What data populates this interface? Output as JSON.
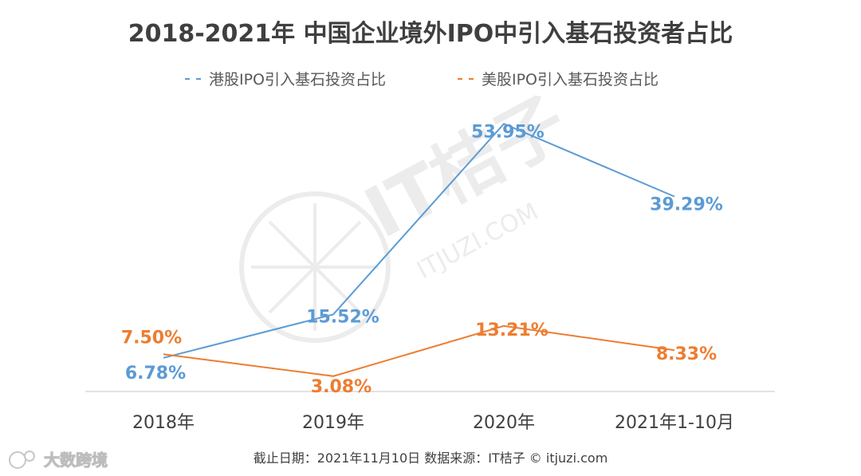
{
  "chart_data": {
    "type": "line",
    "title": "2018-2021年 中国企业境外IPO中引入基石投资者占比",
    "categories": [
      "2018年",
      "2019年",
      "2020年",
      "2021年1-10月"
    ],
    "series": [
      {
        "name": "港股IPO引入基石投资占比",
        "values": [
          6.78,
          15.52,
          53.95,
          39.29
        ],
        "labels": [
          "6.78%",
          "15.52%",
          "53.95%",
          "39.29%"
        ],
        "color": "#5b9bd5"
      },
      {
        "name": "美股IPO引入基石投资占比",
        "values": [
          7.5,
          3.08,
          13.21,
          8.33
        ],
        "labels": [
          "7.50%",
          "3.08%",
          "13.21%",
          "8.33%"
        ],
        "color": "#ed7d31"
      }
    ],
    "ylim": [
      0,
      60
    ],
    "grid": false,
    "legend_position": "top"
  },
  "footer": {
    "text": "截止日期：2021年11月10日    数据来源：IT桔子 © itjuzi.com"
  },
  "watermark": {
    "main": "IT桔子",
    "sub": "ITJUZI.COM",
    "corner": "大数跨境"
  },
  "colors": {
    "axis": "#d9d9d9",
    "watermark": "#e8e8e8"
  }
}
